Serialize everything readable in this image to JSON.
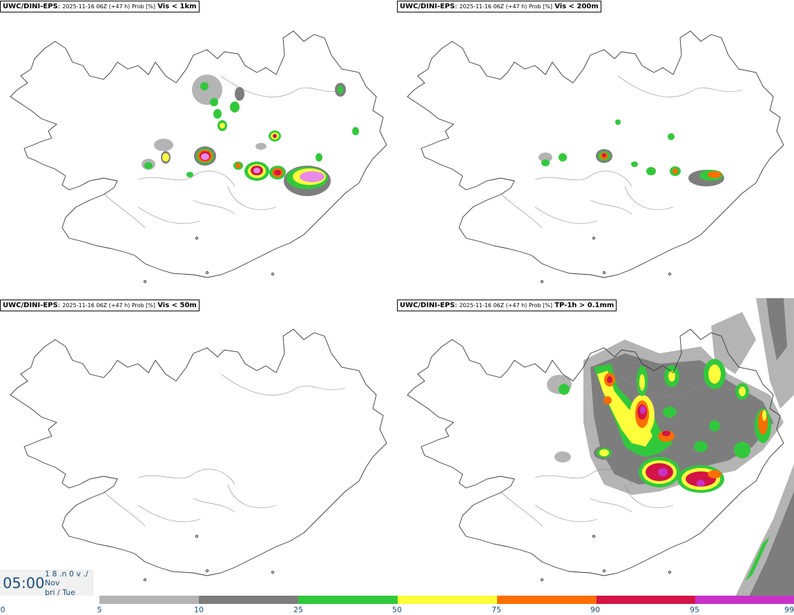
{
  "panels": [
    {
      "model": "UWC/DINI-EPS",
      "meta": "2025-11-16 06Z (+47 h) Prob [%]",
      "variable": "Vis < 1km"
    },
    {
      "model": "UWC/DINI-EPS",
      "meta": "2025-11-16 06Z (+47 h) Prob [%]",
      "variable": "Vis < 200m"
    },
    {
      "model": "UWC/DINI-EPS",
      "meta": "2025-11-16 06Z (+47 h) Prob [%]",
      "variable": "Vis < 50m"
    },
    {
      "model": "UWC/DINI-EPS",
      "meta": "2025-11-16 06Z (+47 h) Prob [%]",
      "variable": "TP-1h > 0.1mm"
    }
  ],
  "time": {
    "clock": "05:00",
    "line1": "1 8 .n 0 v ./",
    "line2": "Nov",
    "line3": "þri / Tue"
  },
  "colorbar": {
    "segments": [
      {
        "from": "5",
        "to": "10",
        "color": "#b4b4b4"
      },
      {
        "from": "10",
        "to": "25",
        "color": "#7d7d7d"
      },
      {
        "from": "25",
        "to": "50",
        "color": "#32c83c"
      },
      {
        "from": "50",
        "to": "75",
        "color": "#ffff3c"
      },
      {
        "from": "75",
        "to": "90",
        "color": "#ff6e00"
      },
      {
        "from": "90",
        "to": "95",
        "color": "#d21446"
      },
      {
        "from": "95",
        "to": "99",
        "color": "#c832c8"
      }
    ],
    "ticks": [
      "0",
      "5",
      "10",
      "25",
      "50",
      "75",
      "90",
      "95",
      "99"
    ]
  }
}
